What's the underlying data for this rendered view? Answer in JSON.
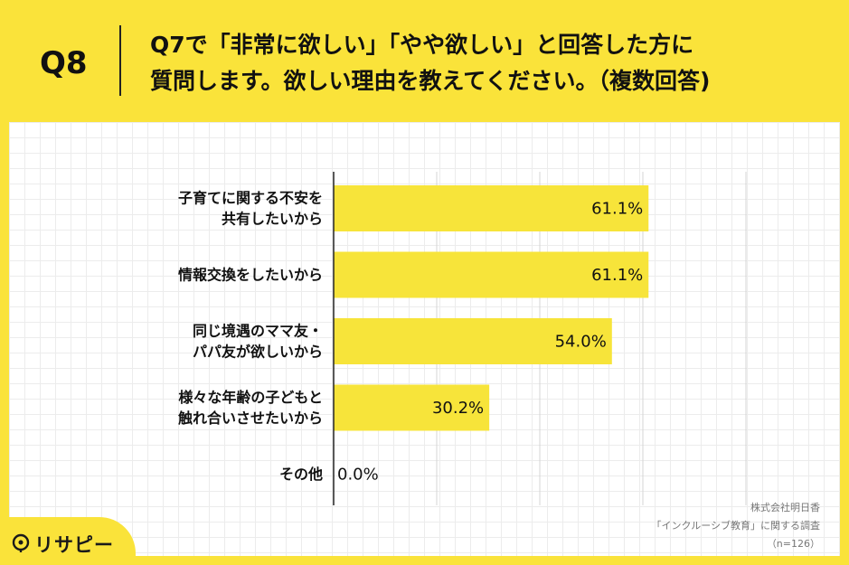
{
  "header": {
    "q_number": "Q8",
    "title_line1": "Q7で「非常に欲しい」「やや欲しい」と回答した方に",
    "title_line2": "質問します。欲しい理由を教えてください。（複数回答)"
  },
  "chart_data": {
    "type": "bar",
    "orientation": "horizontal",
    "categories": [
      [
        "子育てに関する不安を",
        "共有したいから"
      ],
      [
        "情報交換をしたいから"
      ],
      [
        "同じ境遇のママ友・",
        "パパ友が欲しいから"
      ],
      [
        "様々な年齢の子どもと",
        "触れ合いさせたいから"
      ],
      [
        "その他"
      ]
    ],
    "values": [
      61.1,
      61.1,
      54.0,
      30.2,
      0.0
    ],
    "value_labels": [
      "61.1%",
      "61.1%",
      "54.0%",
      "30.2%",
      "0.0%"
    ],
    "unit": "%",
    "xlim": [
      0,
      100
    ],
    "grid": true,
    "bar_color": "#f7e43a"
  },
  "footer": {
    "line1": "株式会社明日香",
    "line2": "「インクルーシブ教育」に関する調査",
    "line3": "（n=126）"
  },
  "logo": {
    "icon": "lightbulb-icon",
    "text": "リサピー"
  }
}
